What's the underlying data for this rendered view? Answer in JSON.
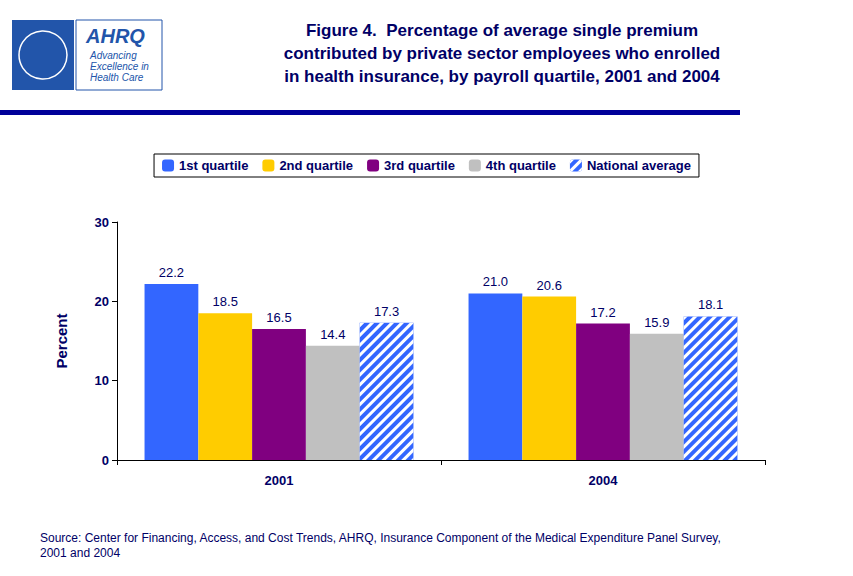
{
  "chart_data": {
    "type": "bar",
    "title": "Figure 4.  Percentage of average single premium\ncontributed by private sector employees who enrolled\nin health insurance, by payroll quartile, 2001 and 2004",
    "logo_text": [
      "AHRQ",
      "Advancing\nExcellence in\nHealth Care"
    ],
    "source": "Source: Center for Financing, Access, and Cost Trends, AHRQ, Insurance Component of the Medical Expenditure Panel Survey,\n2001 and 2004",
    "y_label": "Percent",
    "categories": [
      "2001",
      "2004"
    ],
    "series": [
      {
        "name": "1st quartile",
        "color": "#3366ff",
        "values": [
          22.2,
          21.0
        ],
        "value_labels": [
          "22.2",
          "21.0"
        ]
      },
      {
        "name": "2nd quartile",
        "color": "#ffcc00",
        "values": [
          18.5,
          20.6
        ]
      },
      {
        "name": "3rd quartile",
        "color": "#800080",
        "values": [
          16.5,
          17.2
        ]
      },
      {
        "name": "4th quartile",
        "color": "#c0c0c0",
        "values": [
          14.4,
          15.9
        ]
      },
      {
        "name": "National average",
        "color": "#3366ff",
        "values": [
          17.3,
          18.1
        ]
      }
    ],
    "ylim": [
      0,
      30
    ],
    "yticks": [
      0,
      10,
      20,
      30
    ],
    "grid": false,
    "legend": "top",
    "data_labels": true
  }
}
